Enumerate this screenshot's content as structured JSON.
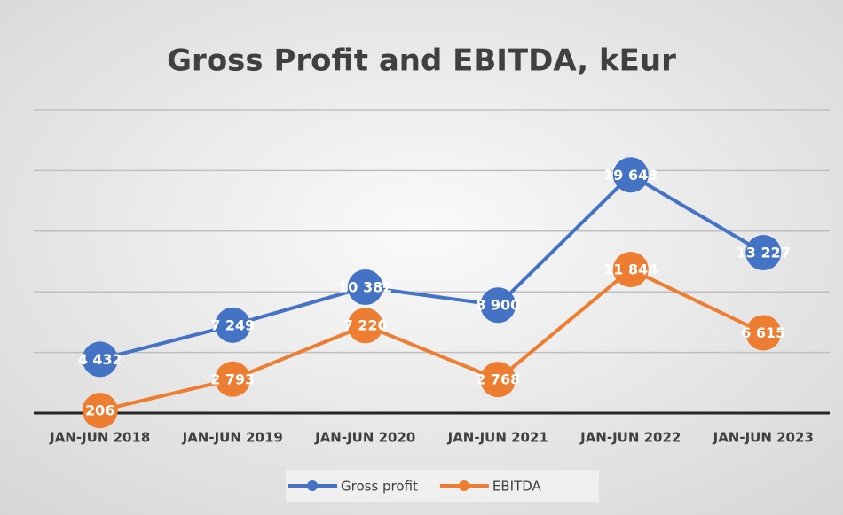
{
  "chart_data": {
    "type": "line",
    "title": "Gross Profit and EBITDA, kEur",
    "categories": [
      "JAN-JUN 2018",
      "JAN-JUN 2019",
      "JAN-JUN 2020",
      "JAN-JUN 2021",
      "JAN-JUN 2022",
      "JAN-JUN 2023"
    ],
    "series": [
      {
        "name": "Gross profit",
        "color": "#4472c4",
        "values": [
          4432,
          7249,
          10382,
          8900,
          19643,
          13227
        ],
        "value_labels": [
          "4 432",
          "7 249",
          "10 382",
          "8 900",
          "19 643",
          "13 227"
        ]
      },
      {
        "name": "EBITDA",
        "color": "#ed7d31",
        "values": [
          206,
          2793,
          7220,
          2768,
          11844,
          6615
        ],
        "value_labels": [
          "206",
          "2 793",
          "7 220",
          "2 768",
          "11 844",
          "6 615"
        ]
      }
    ],
    "ylim": [
      0,
      25000
    ],
    "yticks": [
      0,
      5000,
      10000,
      15000,
      20000,
      25000
    ],
    "grid": true,
    "legend": "bottom"
  }
}
